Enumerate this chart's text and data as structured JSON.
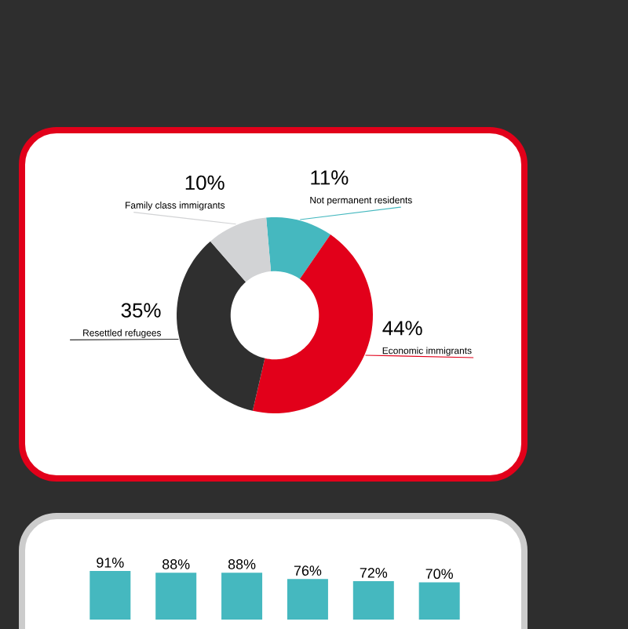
{
  "chart_data": [
    {
      "type": "donut",
      "categories": [
        "Not permanent residents",
        "Economic immigrants",
        "Resettled refugees",
        "Family class immigrants"
      ],
      "values": [
        11,
        44,
        35,
        10
      ],
      "value_labels": [
        "11%",
        "44%",
        "35%",
        "10%"
      ],
      "colors": [
        "#45b8bf",
        "#e2001a",
        "#2f2f2f",
        "#d2d3d5"
      ]
    },
    {
      "type": "bar",
      "categories": [
        null,
        null,
        null,
        null,
        null,
        null
      ],
      "values": [
        91,
        88,
        88,
        76,
        72,
        70
      ],
      "value_labels": [
        "91%",
        "88%",
        "88%",
        "76%",
        "72%",
        "70%"
      ],
      "color": "#45b8bf",
      "ylim": [
        0,
        100
      ]
    }
  ]
}
